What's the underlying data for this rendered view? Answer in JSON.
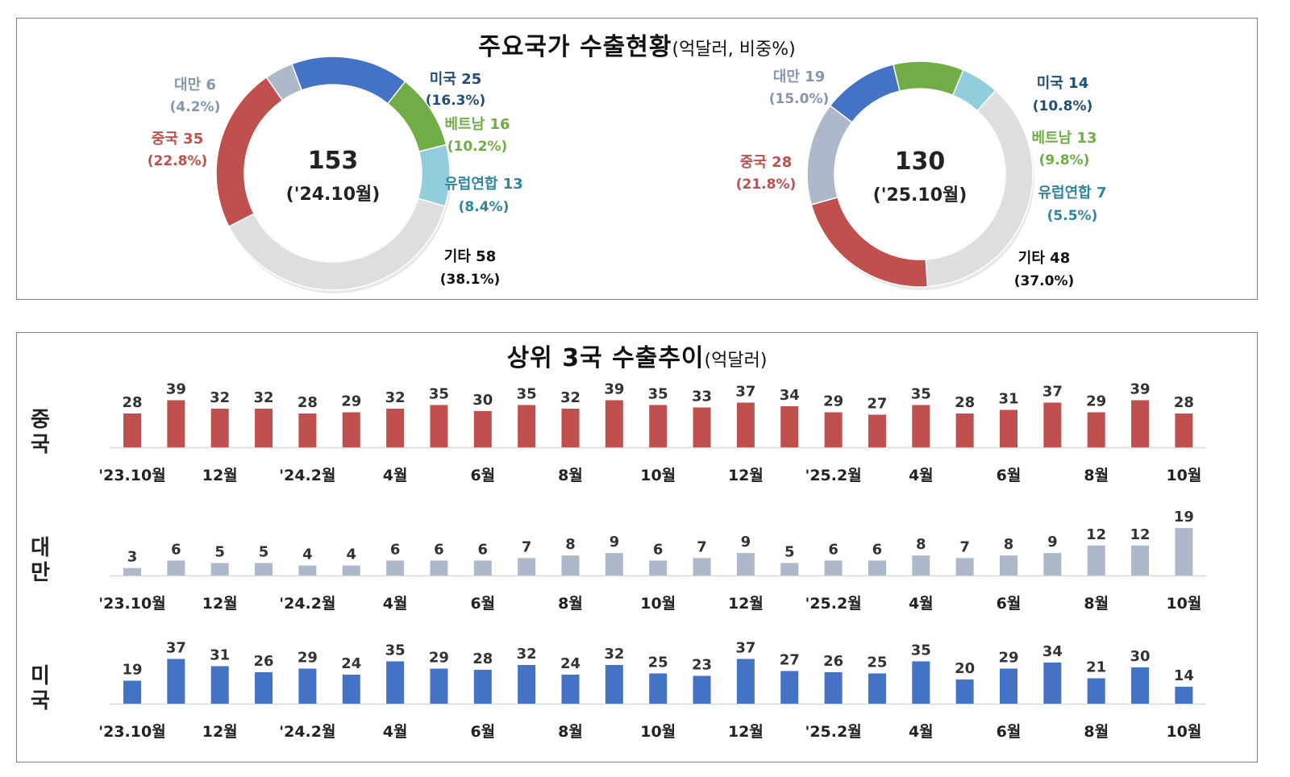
{
  "top_title": {
    "main": "주요국가 수출현황",
    "unit": "(억달러, 비중%)"
  },
  "bottom_title": {
    "main": "상위 3국 수출추이",
    "unit": "(억달러)"
  },
  "colors": {
    "china": "#c0504d",
    "taiwan": "#adb9ca",
    "usa": "#4472c4",
    "vietnam": "#70ad47",
    "eu": "#92cddc",
    "other": "#dedede",
    "eu_text": "#31859c",
    "usa_text": "#1f4e79"
  },
  "chart_data": [
    {
      "type": "pie",
      "center_value": "153",
      "center_label": "('24.10월)",
      "slices": [
        {
          "key": "usa",
          "name": "미국",
          "value": 25,
          "share": "(16.3%)"
        },
        {
          "key": "vietnam",
          "name": "베트남",
          "value": 16,
          "share": "(10.2%)"
        },
        {
          "key": "eu",
          "name": "유럽연합",
          "value": 13,
          "share": "(8.4%)"
        },
        {
          "key": "other",
          "name": "기타",
          "value": 58,
          "share": "(38.1%)"
        },
        {
          "key": "china",
          "name": "중국",
          "value": 35,
          "share": "(22.8%)"
        },
        {
          "key": "taiwan",
          "name": "대만",
          "value": 6,
          "share": "(4.2%)"
        }
      ]
    },
    {
      "type": "pie",
      "center_value": "130",
      "center_label": "('25.10월)",
      "slices": [
        {
          "key": "usa",
          "name": "미국",
          "value": 14,
          "share": "(10.8%)"
        },
        {
          "key": "vietnam",
          "name": "베트남",
          "value": 13,
          "share": "(9.8%)"
        },
        {
          "key": "eu",
          "name": "유럽연합",
          "value": 7,
          "share": "(5.5%)"
        },
        {
          "key": "other",
          "name": "기타",
          "value": 48,
          "share": "(37.0%)"
        },
        {
          "key": "china",
          "name": "중국",
          "value": 28,
          "share": "(21.8%)"
        },
        {
          "key": "taiwan",
          "name": "대만",
          "value": 19,
          "share": "(15.0%)"
        }
      ]
    },
    {
      "type": "bar",
      "categories": [
        "'23.10월",
        "",
        "12월",
        "",
        "'24.2월",
        "",
        "4월",
        "",
        "6월",
        "",
        "8월",
        "",
        "10월",
        "",
        "12월",
        "",
        "'25.2월",
        "",
        "4월",
        "",
        "6월",
        "",
        "8월",
        "",
        "10월"
      ],
      "series": [
        {
          "key": "china",
          "name": "중국",
          "values": [
            28,
            39,
            32,
            32,
            28,
            29,
            32,
            35,
            30,
            35,
            32,
            39,
            35,
            33,
            37,
            34,
            29,
            27,
            35,
            28,
            31,
            37,
            29,
            39,
            28
          ]
        },
        {
          "key": "taiwan",
          "name": "대만",
          "values": [
            3,
            6,
            5,
            5,
            4,
            4,
            6,
            6,
            6,
            7,
            8,
            9,
            6,
            7,
            9,
            5,
            6,
            6,
            8,
            7,
            8,
            9,
            12,
            12,
            19
          ]
        },
        {
          "key": "usa",
          "name": "미국",
          "values": [
            19,
            37,
            31,
            26,
            29,
            24,
            35,
            29,
            28,
            32,
            24,
            32,
            25,
            23,
            37,
            27,
            26,
            25,
            35,
            20,
            29,
            34,
            21,
            30,
            14
          ]
        }
      ]
    }
  ]
}
